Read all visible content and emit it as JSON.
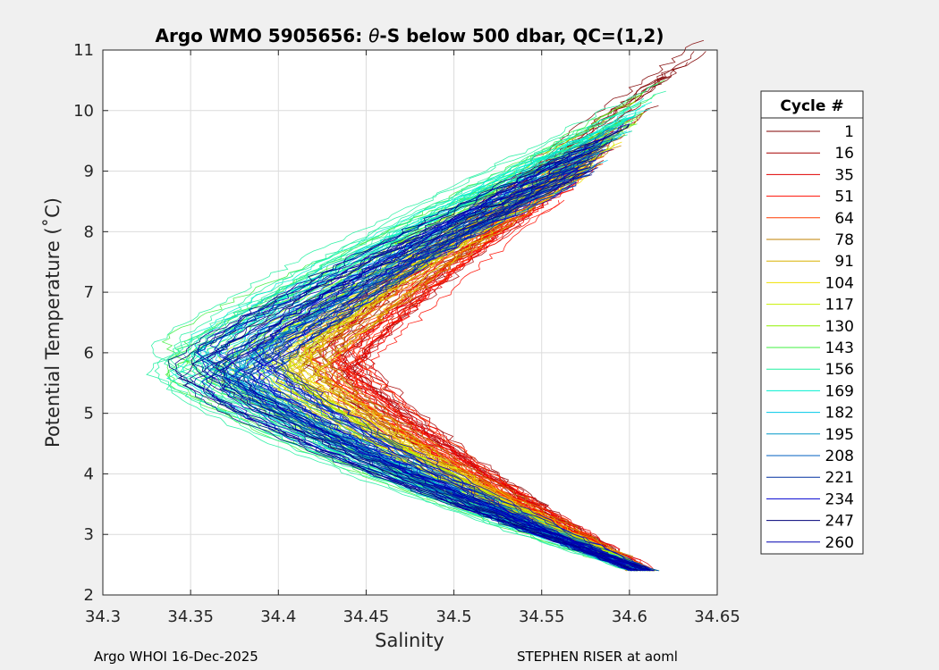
{
  "chart_data": {
    "type": "line",
    "title_prefix": "Argo WMO 5905656: ",
    "title_theta": "θ",
    "title_suffix": "-S below 500 dbar,  QC=(1,2)",
    "xlabel": "Salinity",
    "ylabel": "Potential Temperature (˚C)",
    "xlim": [
      34.3,
      34.65
    ],
    "ylim": [
      2,
      11
    ],
    "xticks": [
      "34.3",
      "34.35",
      "34.4",
      "34.45",
      "34.5",
      "34.55",
      "34.6",
      "34.65"
    ],
    "yticks": [
      "2",
      "3",
      "4",
      "5",
      "6",
      "7",
      "8",
      "9",
      "10",
      "11"
    ],
    "grid": true,
    "legend_title": "Cycle #",
    "legend_position": "outside-right",
    "series": [
      {
        "name": "1",
        "color": "#800000",
        "min_salinity": 34.42,
        "max_salinity": 34.63
      },
      {
        "name": "16",
        "color": "#a50000",
        "min_salinity": 34.425,
        "max_salinity": 34.6
      },
      {
        "name": "35",
        "color": "#e00000",
        "min_salinity": 34.43,
        "max_salinity": 34.58
      },
      {
        "name": "51",
        "color": "#ff0d00",
        "min_salinity": 34.425,
        "max_salinity": 34.575
      },
      {
        "name": "64",
        "color": "#ff3a00",
        "min_salinity": 34.42,
        "max_salinity": 34.58
      },
      {
        "name": "78",
        "color": "#c08000",
        "min_salinity": 34.41,
        "max_salinity": 34.59
      },
      {
        "name": "91",
        "color": "#d8b000",
        "min_salinity": 34.405,
        "max_salinity": 34.585
      },
      {
        "name": "104",
        "color": "#f0e000",
        "min_salinity": 34.4,
        "max_salinity": 34.58
      },
      {
        "name": "117",
        "color": "#c8f000",
        "min_salinity": 34.39,
        "max_salinity": 34.59
      },
      {
        "name": "130",
        "color": "#90f000",
        "min_salinity": 34.37,
        "max_salinity": 34.6
      },
      {
        "name": "143",
        "color": "#40f040",
        "min_salinity": 34.34,
        "max_salinity": 34.605
      },
      {
        "name": "156",
        "color": "#20f0a0",
        "min_salinity": 34.335,
        "max_salinity": 34.61
      },
      {
        "name": "169",
        "color": "#00f0d0",
        "min_salinity": 34.345,
        "max_salinity": 34.6
      },
      {
        "name": "182",
        "color": "#00c8e8",
        "min_salinity": 34.36,
        "max_salinity": 34.59
      },
      {
        "name": "195",
        "color": "#0098c8",
        "min_salinity": 34.37,
        "max_salinity": 34.585
      },
      {
        "name": "208",
        "color": "#0060c0",
        "min_salinity": 34.375,
        "max_salinity": 34.58
      },
      {
        "name": "221",
        "color": "#0030a0",
        "min_salinity": 34.38,
        "max_salinity": 34.575
      },
      {
        "name": "234",
        "color": "#0000d0",
        "min_salinity": 34.37,
        "max_salinity": 34.58
      },
      {
        "name": "247",
        "color": "#00007a",
        "min_salinity": 34.345,
        "max_salinity": 34.59
      },
      {
        "name": "260",
        "color": "#0000b0",
        "min_salinity": 34.36,
        "max_salinity": 34.585
      }
    ]
  },
  "footer": {
    "left": "Argo WHOI 16-Dec-2025",
    "right": "STEPHEN RISER at aoml"
  }
}
